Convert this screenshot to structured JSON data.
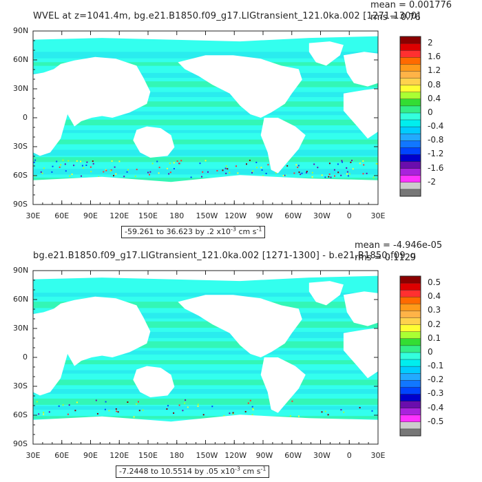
{
  "panels": [
    {
      "title": "WVEL at z=1041.4m, bg.e21.B1850.f09_g17.LIGtransient_121.0ka.002 [1271-1300]",
      "mean": "mean = 0.001776",
      "rms": "rms = 0.76",
      "range_main": "-59.261 to 36.623 by .2 x10",
      "range_exp": "-3",
      "range_units": " cm s",
      "range_units_exp": "-1",
      "lat_labels": [
        "90N",
        "60N",
        "30N",
        "0",
        "30S",
        "60S",
        "90S"
      ],
      "lon_labels": [
        "30E",
        "60E",
        "90E",
        "120E",
        "150E",
        "180",
        "150W",
        "120W",
        "90W",
        "60W",
        "30W",
        "0",
        "30E"
      ],
      "colorbar_labels": [
        "2",
        "1.6",
        "1.2",
        "0.8",
        "0.4",
        "0",
        "-0.4",
        "-0.8",
        "-1.2",
        "-1.6",
        "-2"
      ],
      "colorbar_colors": [
        "#8b0000",
        "#dd0000",
        "#ff3030",
        "#ff6a00",
        "#ff9a1a",
        "#ffb347",
        "#ffd24d",
        "#ffff33",
        "#aaff33",
        "#33dd33",
        "#33ee88",
        "#33ffdd",
        "#00eeee",
        "#00ccff",
        "#22aaff",
        "#1177ff",
        "#0044ff",
        "#0000cc",
        "#6a0dad",
        "#aa22dd",
        "#ff33ff",
        "#cccccc",
        "#777777"
      ]
    },
    {
      "title": "bg.e21.B1850.f09_g17.LIGtransient_121.0ka.002 [1271-1300] - b.e21.B1850.f09_g",
      "mean": "mean = -4.946e-05",
      "rms": "rms = 0.1129",
      "range_main": "-7.2448 to 10.5514 by .05 x10",
      "range_exp": "-3",
      "range_units": " cm s",
      "range_units_exp": "-1",
      "lat_labels": [
        "90N",
        "60N",
        "30N",
        "0",
        "30S",
        "60S",
        "90S"
      ],
      "lon_labels": [
        "30E",
        "60E",
        "90E",
        "120E",
        "150E",
        "180",
        "150W",
        "120W",
        "90W",
        "60W",
        "30W",
        "0",
        "30E"
      ],
      "colorbar_labels": [
        "0.5",
        "0.4",
        "0.3",
        "0.2",
        "0.1",
        "0",
        "-0.1",
        "-0.2",
        "-0.3",
        "-0.4",
        "-0.5"
      ],
      "colorbar_colors": [
        "#8b0000",
        "#dd0000",
        "#ff3030",
        "#ff6a00",
        "#ff9a1a",
        "#ffb347",
        "#ffd24d",
        "#ffff33",
        "#aaff33",
        "#33dd33",
        "#33ee88",
        "#33ffdd",
        "#00eeee",
        "#00ccff",
        "#22aaff",
        "#1177ff",
        "#0044ff",
        "#0000cc",
        "#6a0dad",
        "#aa22dd",
        "#ff33ff",
        "#cccccc",
        "#777777"
      ]
    }
  ],
  "colors": {
    "ocean_base": "#33ffee",
    "ocean_band": "#33ee88",
    "ocean_band2": "#22ddee",
    "land": "#ffffff",
    "frame": "#222222"
  }
}
